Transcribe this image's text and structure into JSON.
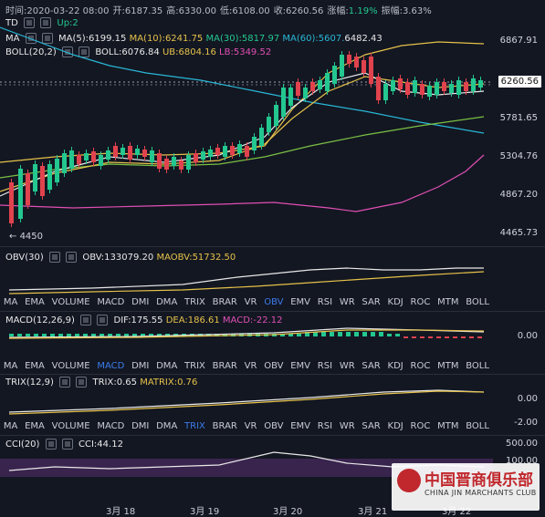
{
  "header": {
    "time": "时间:2020-03-22 08:00",
    "open": "开:6187.35",
    "high": "高:6330.00",
    "low": "低:6108.00",
    "close": "收:6260.56",
    "change_label": "涨幅:",
    "change_value": "1.19%",
    "amplitude": "振幅:3.63%"
  },
  "td": {
    "label": "TD",
    "up": "Up:2"
  },
  "ma": {
    "label": "MA",
    "ma5": "MA(5):6199.15",
    "ma10": "MA(10):6241.75",
    "ma30": "MA(30):5817.97",
    "ma60": "MA(60):5607.",
    "ma60_tail": "6482.43"
  },
  "boll": {
    "label": "BOLL(20,2)",
    "boll": "BOLL:6076.84",
    "ub": "UB:6804.16",
    "lb": "LB:5349.52"
  },
  "price_axis": [
    "6867.91",
    "5781.65",
    "5304.76",
    "4867.20",
    "4465.73"
  ],
  "current_price": "6260.56",
  "low_marker": "4450",
  "obv": {
    "label": "OBV(30)",
    "obv": "OBV:133079.20",
    "maobv": "MAOBV:51732.50"
  },
  "macd": {
    "label": "MACD(12,26,9)",
    "dif": "DIF:175.55",
    "dea": "DEA:186.61",
    "macd": "MACD:-22.12",
    "axis0": "0.00"
  },
  "trix": {
    "label": "TRIX(12,9)",
    "trix": "TRIX:0.65",
    "matrix": "MATRIX:0.76",
    "axis0": "0.00",
    "axis1": "-2.00"
  },
  "cci": {
    "label": "CCI(20)",
    "cci": "CCI:44.12",
    "axis500": "500.00",
    "axis100": "100.00"
  },
  "indicator_tabs": [
    "MA",
    "EMA",
    "VOLUME",
    "MACD",
    "DMI",
    "DMA",
    "TRIX",
    "BRAR",
    "VR",
    "OBV",
    "EMV",
    "RSI",
    "WR",
    "SAR",
    "KDJ",
    "ROC",
    "MTM",
    "BOLL"
  ],
  "date_axis": [
    "3月 18",
    "3月 19",
    "3月 20",
    "3月 21",
    "3月 22"
  ],
  "watermark": {
    "cn": "中国晋商俱乐部",
    "en": "CHINA JIN MARCHANTS CLUB"
  },
  "colors": {
    "up": "#23c78f",
    "down": "#e0434d",
    "ma5": "#e8e8e8",
    "ma10": "#e5c14a",
    "ma30": "#7bc043",
    "ma60": "#29b7d6",
    "lb": "#e04fb4"
  }
}
